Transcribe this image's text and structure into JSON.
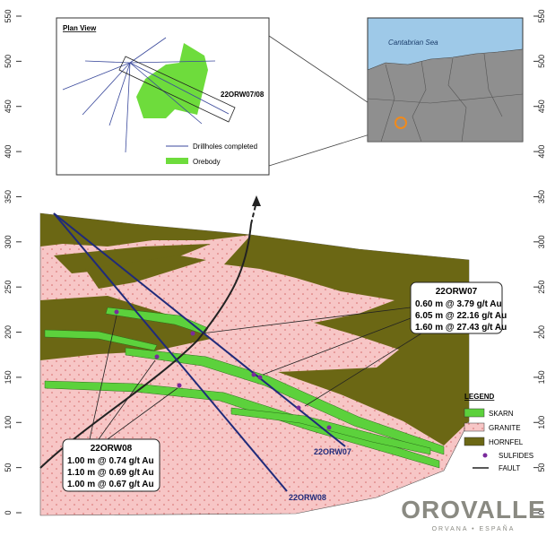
{
  "axis": {
    "ticks": [
      0,
      50,
      100,
      150,
      200,
      250,
      300,
      350,
      400,
      450,
      500,
      550
    ]
  },
  "plan_view": {
    "title": "Plan View",
    "hole_label": "22ORW07/08",
    "legend": [
      "Drillholes completed",
      "Orebody"
    ]
  },
  "location_map": {
    "sea": "Cantabrian Sea"
  },
  "callouts": [
    {
      "title": "22ORW07",
      "lines": [
        "0.60 m @ 3.79 g/t Au",
        "6.05 m @ 22.16 g/t Au",
        "1.60 m @ 27.43 g/t Au"
      ]
    },
    {
      "title": "22ORW08",
      "lines": [
        "1.00 m @ 0.74 g/t Au",
        "1.10 m @ 0.69 g/t Au",
        "1.00 m @ 0.67 g/t Au"
      ]
    }
  ],
  "drillholes": [
    "22ORW07",
    "22ORW08"
  ],
  "legend": {
    "title": "LEGEND",
    "items": [
      "SKARN",
      "GRANITE",
      "HORNFEL",
      "SULFIDES",
      "FAULT"
    ]
  },
  "logo": {
    "name": "OROVALLE",
    "tagline": "ORVANA • ESPAÑA"
  }
}
